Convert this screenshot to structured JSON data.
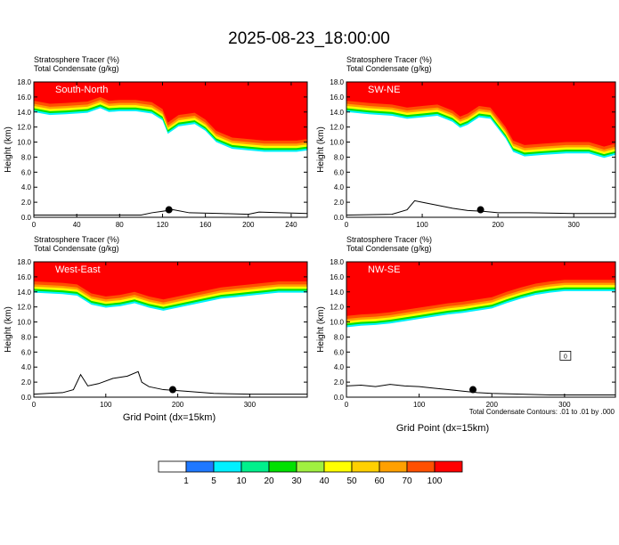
{
  "figure": {
    "title": "2025-08-23_18:00:00",
    "xlabel": "Grid Point (dx=15km)",
    "contour_note": "Total Condensate Contours: .01 to .01 by .000"
  },
  "colorbar": {
    "colors": [
      "#ffffff",
      "#1f78ff",
      "#00f0ff",
      "#00f08c",
      "#00e000",
      "#a0f040",
      "#ffff00",
      "#ffd000",
      "#ffa000",
      "#ff5000",
      "#ff0000"
    ],
    "labels": [
      "1",
      "5",
      "10",
      "20",
      "30",
      "40",
      "50",
      "60",
      "70",
      "100"
    ]
  },
  "chart_data": [
    {
      "type": "heatmap",
      "label": "South-North",
      "header": [
        "Stratosphere Tracer   (%)",
        "Total Condensate   (g/kg)"
      ],
      "ylabel": "Height (km)",
      "xlim": [
        0,
        255
      ],
      "ylim": [
        0,
        18
      ],
      "x_ticks": [
        0,
        40,
        80,
        120,
        160,
        200,
        240
      ],
      "y_ticks": [
        0,
        2,
        4,
        6,
        8,
        10,
        12,
        14,
        16,
        18
      ],
      "tropopause": {
        "x": [
          0,
          15,
          30,
          50,
          62,
          70,
          80,
          95,
          110,
          120,
          125,
          135,
          150,
          160,
          170,
          185,
          200,
          215,
          230,
          245,
          255
        ],
        "y": [
          15.5,
          15.1,
          15.2,
          15.4,
          16.0,
          15.5,
          15.6,
          15.6,
          15.3,
          14.4,
          12.6,
          13.6,
          13.9,
          13.0,
          11.5,
          10.6,
          10.4,
          10.2,
          10.2,
          10.2,
          10.4
        ]
      },
      "terrain": {
        "x": [
          0,
          20,
          60,
          100,
          110,
          120,
          130,
          145,
          175,
          200,
          210,
          230,
          255
        ],
        "y": [
          0.3,
          0.3,
          0.3,
          0.3,
          0.6,
          0.8,
          1.0,
          0.6,
          0.5,
          0.4,
          0.7,
          0.6,
          0.5
        ]
      },
      "marker": {
        "x": 126,
        "y": 1.0
      }
    },
    {
      "type": "heatmap",
      "label": "SW-NE",
      "header": [
        "Stratosphere Tracer   (%)",
        "Total Condensate   (g/kg)"
      ],
      "ylabel": "Height (km)",
      "xlim": [
        0,
        355
      ],
      "ylim": [
        0,
        18
      ],
      "x_ticks": [
        0,
        100,
        200,
        300
      ],
      "y_ticks": [
        0,
        2,
        4,
        6,
        8,
        10,
        12,
        14,
        16,
        18
      ],
      "tropopause": {
        "x": [
          0,
          30,
          60,
          80,
          100,
          120,
          140,
          150,
          160,
          175,
          190,
          210,
          220,
          235,
          260,
          290,
          320,
          340,
          355
        ],
        "y": [
          15.5,
          15.2,
          15.0,
          14.6,
          14.8,
          15.0,
          14.2,
          13.4,
          13.8,
          14.8,
          14.6,
          12.0,
          10.2,
          9.6,
          9.8,
          10.0,
          10.0,
          9.4,
          9.8
        ]
      },
      "terrain": {
        "x": [
          0,
          60,
          80,
          90,
          100,
          120,
          140,
          160,
          180,
          200,
          240,
          300,
          355
        ],
        "y": [
          0.3,
          0.4,
          1.0,
          2.2,
          2.0,
          1.6,
          1.2,
          0.9,
          0.8,
          0.6,
          0.6,
          0.5,
          0.5
        ]
      },
      "marker": {
        "x": 177,
        "y": 1.0
      }
    },
    {
      "type": "heatmap",
      "label": "West-East",
      "header": [
        "Stratosphere Tracer   (%)",
        "Total Condensate   (g/kg)"
      ],
      "ylabel": "Height (km)",
      "xlim": [
        0,
        380
      ],
      "ylim": [
        0,
        18
      ],
      "x_ticks": [
        0,
        100,
        200,
        300
      ],
      "y_ticks": [
        0,
        2,
        4,
        6,
        8,
        10,
        12,
        14,
        16,
        18
      ],
      "tropopause": {
        "x": [
          0,
          40,
          60,
          80,
          100,
          120,
          140,
          160,
          180,
          200,
          220,
          240,
          260,
          280,
          300,
          320,
          340,
          380
        ],
        "y": [
          15.4,
          15.2,
          15.0,
          13.8,
          13.4,
          13.6,
          14.0,
          13.4,
          13.0,
          13.4,
          13.8,
          14.2,
          14.6,
          14.8,
          15.0,
          15.2,
          15.4,
          15.4
        ]
      },
      "terrain": {
        "x": [
          0,
          20,
          40,
          55,
          65,
          75,
          90,
          110,
          130,
          145,
          150,
          160,
          180,
          210,
          250,
          300,
          340,
          380
        ],
        "y": [
          0.4,
          0.5,
          0.6,
          1.0,
          3.0,
          1.5,
          1.8,
          2.5,
          2.8,
          3.4,
          2.0,
          1.4,
          1.0,
          0.8,
          0.5,
          0.4,
          0.4,
          0.4
        ]
      },
      "marker": {
        "x": 193,
        "y": 1.0
      }
    },
    {
      "type": "heatmap",
      "label": "NW-SE",
      "header": [
        "Stratosphere Tracer   (%)",
        "Total Condensate   (g/kg)"
      ],
      "ylabel": "Height (km)",
      "xlim": [
        0,
        370
      ],
      "ylim": [
        0,
        18
      ],
      "x_ticks": [
        0,
        100,
        200,
        300
      ],
      "y_ticks": [
        0,
        2,
        4,
        6,
        8,
        10,
        12,
        14,
        16,
        18
      ],
      "tropopause": {
        "x": [
          0,
          20,
          40,
          60,
          80,
          100,
          120,
          140,
          160,
          180,
          200,
          220,
          240,
          260,
          280,
          300,
          330,
          370
        ],
        "y": [
          10.8,
          11.0,
          11.1,
          11.3,
          11.6,
          11.9,
          12.2,
          12.5,
          12.7,
          13.0,
          13.3,
          14.0,
          14.6,
          15.1,
          15.4,
          15.6,
          15.6,
          15.6
        ]
      },
      "terrain": {
        "x": [
          0,
          20,
          40,
          60,
          80,
          100,
          120,
          140,
          160,
          180,
          200,
          240,
          280,
          320,
          370
        ],
        "y": [
          1.5,
          1.6,
          1.4,
          1.7,
          1.5,
          1.4,
          1.2,
          1.0,
          0.8,
          0.6,
          0.5,
          0.4,
          0.3,
          0.3,
          0.3
        ]
      },
      "marker": {
        "x": 174,
        "y": 1.0
      },
      "box_label": "0"
    }
  ]
}
